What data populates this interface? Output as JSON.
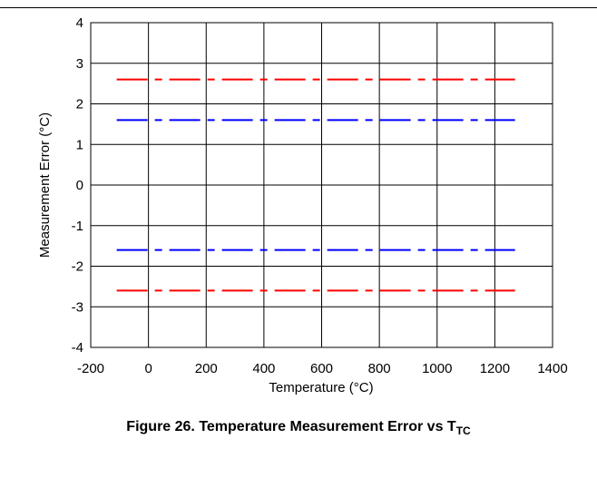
{
  "chart_data": {
    "type": "line",
    "xlabel": "Temperature (°C)",
    "ylabel": "Measurement Error (°C)",
    "xlim": [
      -200,
      1400
    ],
    "ylim": [
      -4,
      4
    ],
    "xticks": [
      "-200",
      "0",
      "200",
      "400",
      "600",
      "800",
      "1000",
      "1200",
      "1400"
    ],
    "yticks": [
      "-4",
      "-3",
      "-2",
      "-1",
      "0",
      "1",
      "2",
      "3",
      "4"
    ],
    "grid": true,
    "x": [
      -110,
      1270
    ],
    "series": [
      {
        "color": "#ff0000",
        "line_style": "dash-dot",
        "values": [
          2.6,
          2.6
        ]
      },
      {
        "color": "#0000ff",
        "line_style": "dash-dot",
        "values": [
          1.6,
          1.6
        ]
      },
      {
        "color": "#0000ff",
        "line_style": "dash-dot",
        "values": [
          -1.6,
          -1.6
        ]
      },
      {
        "color": "#ff0000",
        "line_style": "dash-dot",
        "values": [
          -2.6,
          -2.6
        ]
      }
    ]
  },
  "caption": {
    "text": "Figure 26. Temperature Measurement Error vs T",
    "subscript": "TC"
  }
}
